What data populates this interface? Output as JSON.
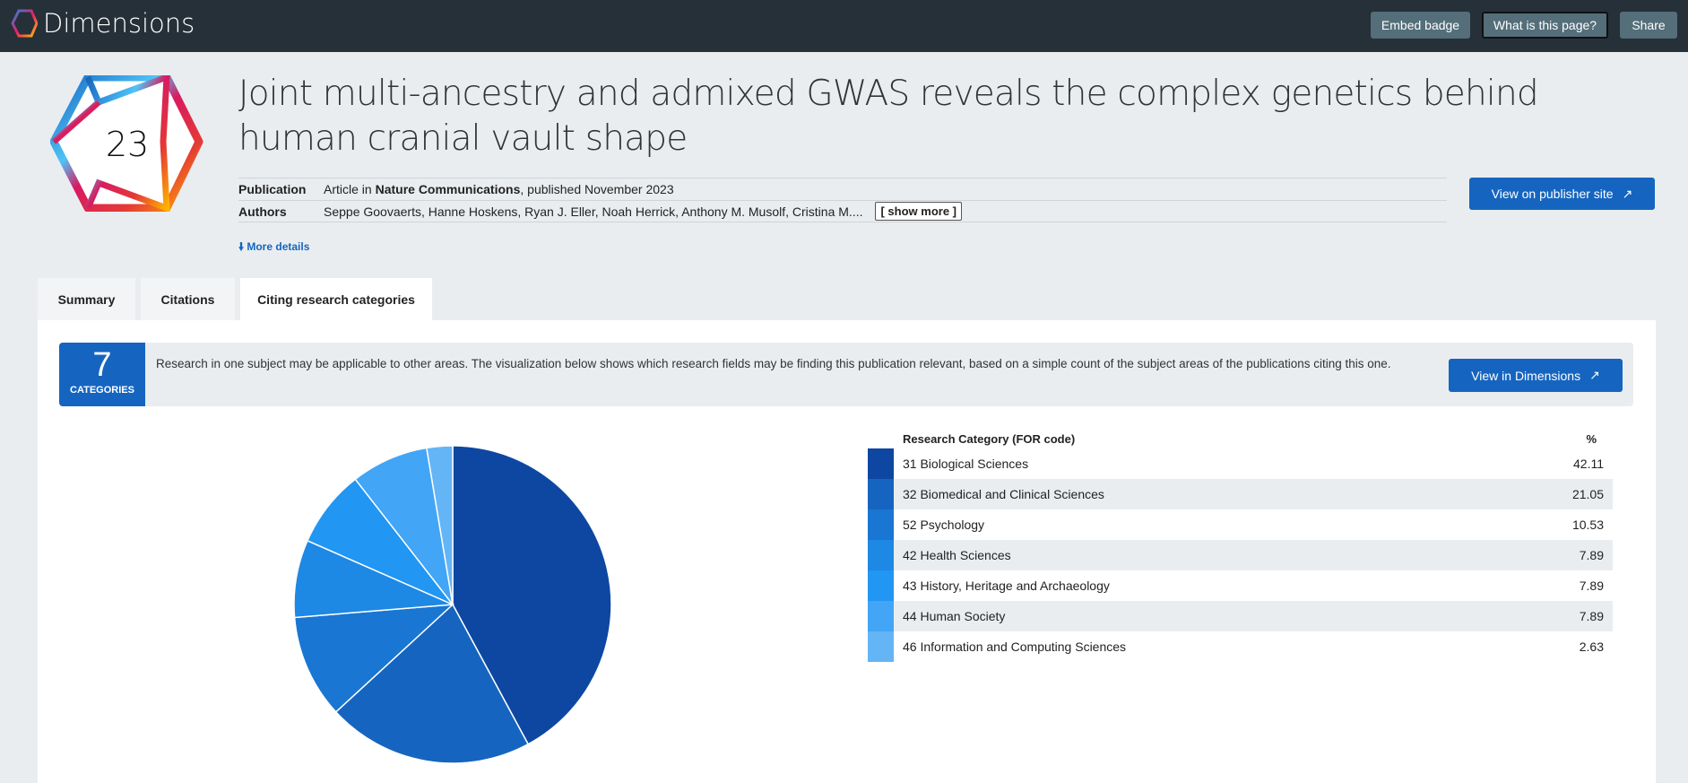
{
  "nav": {
    "brand": "Dimensions",
    "embed_badge": "Embed badge",
    "what_is": "What is this page?",
    "share": "Share"
  },
  "badge": {
    "score": "23"
  },
  "publication": {
    "title": "Joint multi-ancestry and admixed GWAS reveals the complex genetics behind human cranial vault shape",
    "publication_label": "Publication",
    "publication_prefix": "Article in ",
    "journal": "Nature Communications",
    "publication_suffix": ", published November 2023",
    "authors_label": "Authors",
    "authors": "Seppe Goovaerts, Hanne Hoskens, Ryan J. Eller, Noah Herrick, Anthony M. Musolf, Cristina M....",
    "show_more": "[ show more ]",
    "more_details": "More details",
    "publisher_button": "View on publisher site"
  },
  "tabs": [
    {
      "label": "Summary"
    },
    {
      "label": "Citations"
    },
    {
      "label": "Citing research categories",
      "active": true
    }
  ],
  "info": {
    "count": "7",
    "count_label": "CATEGORIES",
    "text": "Research in one subject may be applicable to other areas. The visualization below shows which research fields may be finding this publication relevant, based on a simple count of the subject areas of the publications citing this one.",
    "button": "View in Dimensions"
  },
  "chart_data": {
    "type": "pie",
    "columns": [
      "Research Category (FOR code)",
      "%"
    ],
    "categories": [
      "31 Biological Sciences",
      "32 Biomedical and Clinical Sciences",
      "52 Psychology",
      "42 Health Sciences",
      "43 History, Heritage and Archaeology",
      "44 Human Society",
      "46 Information and Computing Sciences"
    ],
    "values": [
      42.11,
      21.05,
      10.53,
      7.89,
      7.89,
      7.89,
      2.63
    ],
    "colors": [
      "#0d47a1",
      "#1565c0",
      "#1976d2",
      "#1e88e5",
      "#2196f3",
      "#42a5f5",
      "#64b5f6"
    ]
  }
}
